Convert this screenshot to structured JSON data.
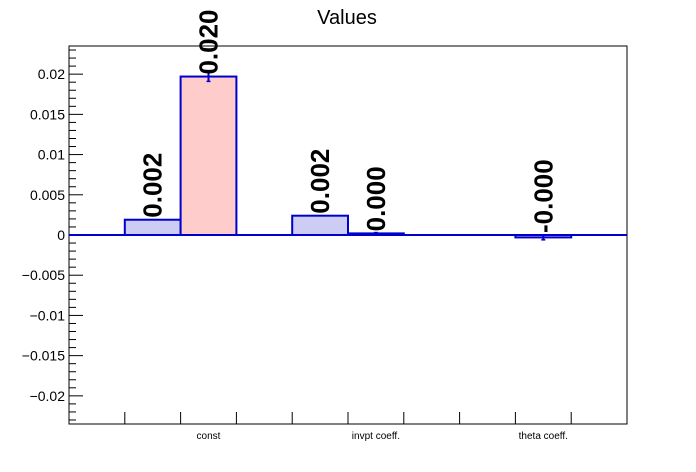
{
  "chart_data": {
    "type": "bar",
    "title": "Values",
    "categories": [
      "const",
      "invpt coeff.",
      "theta coeff."
    ],
    "ylim": [
      -0.0235,
      0.0235
    ],
    "yticks": [
      -0.02,
      -0.015,
      -0.01,
      -0.005,
      0,
      0.005,
      0.01,
      0.015,
      0.02
    ],
    "ytick_labels": [
      "−0.02",
      "−0.015",
      "−0.01",
      "−0.005",
      "0",
      "0.005",
      "0.01",
      "0.015",
      "0.02"
    ],
    "grid": false,
    "series": [
      {
        "values": [
          0.0019,
          0.0024,
          0.0
        ],
        "labels": [
          "0.002",
          "0.002",
          ""
        ],
        "errors": [
          0,
          0,
          0
        ],
        "fill": "#ccccf5",
        "stroke": "#0000cc"
      },
      {
        "values": [
          0.0197,
          0.0002,
          -0.0003
        ],
        "labels": [
          "0.020",
          "0.000",
          "-0.000"
        ],
        "errors": [
          0.0006,
          0.0001,
          0.0003
        ],
        "fill": "#ffcccc",
        "stroke": "#0000cc"
      }
    ]
  }
}
